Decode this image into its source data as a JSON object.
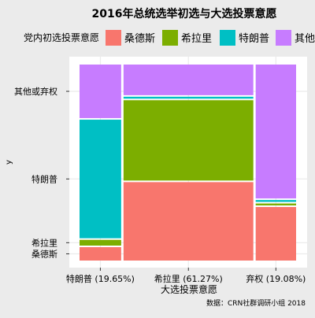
{
  "chart_data": {
    "type": "mosaic",
    "title": "2016年总统选举初选与大选投票意愿",
    "xlabel": "大选投票意愿",
    "ylabel": "y",
    "legend": {
      "title": "党内初选投票意愿",
      "position": "top"
    },
    "caption": "数据：CRN社群调研小组 2018",
    "series": [
      {
        "name": "桑德斯",
        "color": "#f8766d"
      },
      {
        "name": "希拉里",
        "color": "#7cae00"
      },
      {
        "name": "特朗普",
        "color": "#00bfc4"
      },
      {
        "name": "其他",
        "color": "#c77cff"
      }
    ],
    "categories": [
      {
        "label": "特朗普 (19.65%)",
        "width": 19.65,
        "shares": [
          0.07,
          0.03,
          0.62,
          0.28
        ]
      },
      {
        "label": "希拉里 (61.27%)",
        "width": 61.27,
        "shares": [
          0.41,
          0.42,
          0.01,
          0.16
        ]
      },
      {
        "label": "弃权 (19.08%)",
        "width": 19.08,
        "shares": [
          0.28,
          0.01,
          0.01,
          0.7
        ]
      }
    ],
    "y_tick_labels": [
      "桑德斯",
      "希拉里",
      "特朗普",
      "其他或弃权"
    ]
  }
}
